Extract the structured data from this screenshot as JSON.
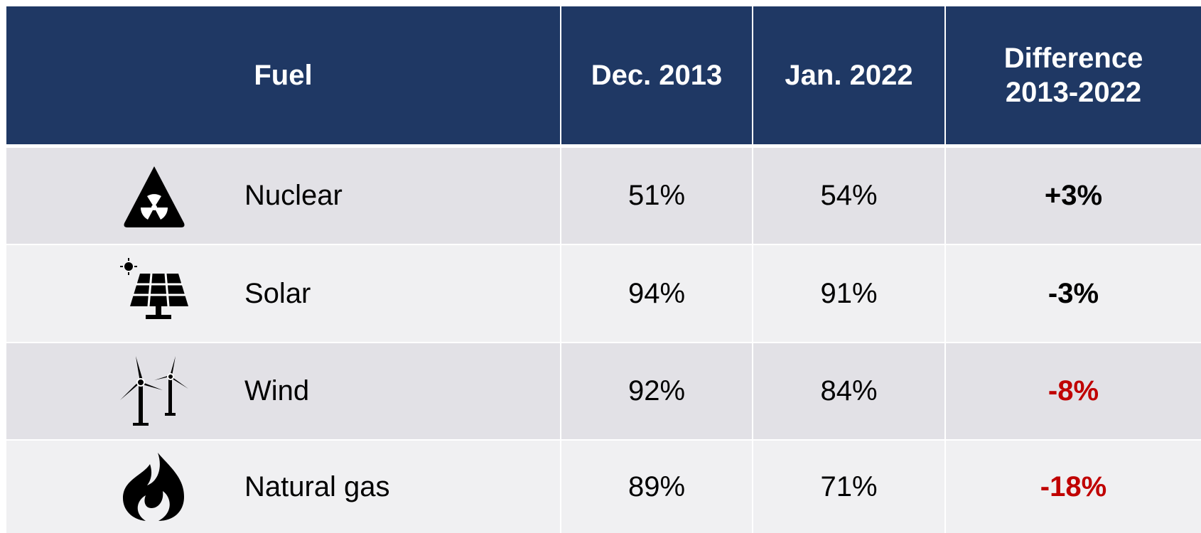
{
  "table": {
    "header": [
      "Fuel",
      "Dec. 2013",
      "Jan. 2022",
      "Difference 2013-2022"
    ],
    "rows": [
      {
        "fuel": "Nuclear",
        "dec_2013": "51%",
        "jan_2022": "54%",
        "difference": "+3%",
        "difference_color": "#000000"
      },
      {
        "fuel": "Solar",
        "dec_2013": "94%",
        "jan_2022": "91%",
        "difference": "-3%",
        "difference_color": "#000000"
      },
      {
        "fuel": "Wind",
        "dec_2013": "92%",
        "jan_2022": "84%",
        "difference": "-8%",
        "difference_color": "#c00000"
      },
      {
        "fuel": "Natural gas",
        "dec_2013": "89%",
        "jan_2022": "71%",
        "difference": "-18%",
        "difference_color": "#c00000"
      }
    ]
  }
}
